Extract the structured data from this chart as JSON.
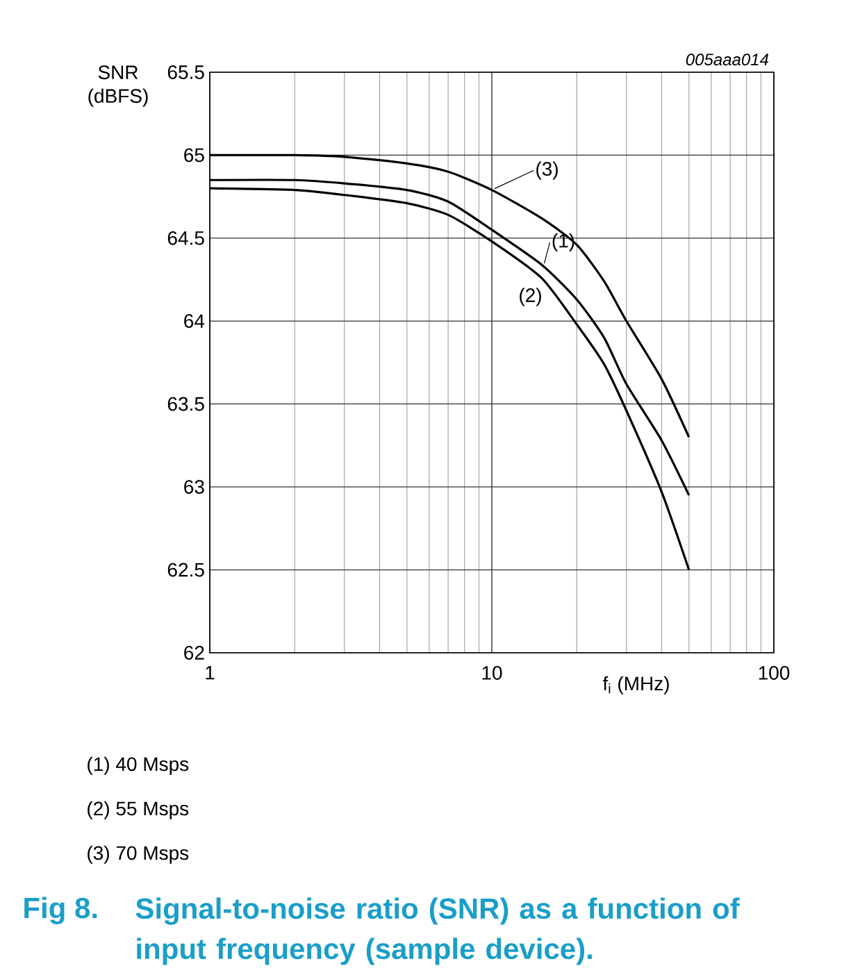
{
  "chart_data": {
    "type": "line",
    "title": "Signal-to-noise ratio (SNR) as a function of input frequency (sample device).",
    "xlabel": "f$_{i}$ (MHz)",
    "ylabel": "SNR (dBFS)",
    "log": "x",
    "grid": true,
    "legend": "top right",
    "xlim": [
      1,
      100
    ],
    "ylim": [
      62,
      65.5
    ],
    "xticks": [
      1,
      10,
      100
    ],
    "yticks": [
      62,
      62.5,
      63,
      63.5,
      64,
      64.5,
      65,
      65.5
    ],
    "x": [
      1,
      2,
      3,
      5,
      7,
      10,
      15,
      20,
      25,
      30,
      40,
      50
    ],
    "series": [
      {
        "name": "(1)",
        "color": "#000000",
        "values": [
          64.85,
          64.85,
          64.83,
          64.79,
          64.72,
          64.55,
          64.34,
          64.13,
          63.9,
          63.62,
          63.28,
          62.95
        ]
      },
      {
        "name": "(2)",
        "color": "#000000",
        "values": [
          64.8,
          64.79,
          64.76,
          64.71,
          64.64,
          64.48,
          64.26,
          63.98,
          63.74,
          63.46,
          62.97,
          62.5
        ]
      },
      {
        "name": "(3)",
        "color": "#000000",
        "values": [
          65.0,
          65.0,
          64.99,
          64.95,
          64.9,
          64.79,
          64.62,
          64.46,
          64.24,
          64.0,
          63.65,
          63.3
        ]
      }
    ],
    "annotations": [
      "005aaa014",
      "(1)  40 Msps",
      "(2)  55 Msps",
      "(3)  70 Msps",
      "Fig 8."
    ]
  }
}
